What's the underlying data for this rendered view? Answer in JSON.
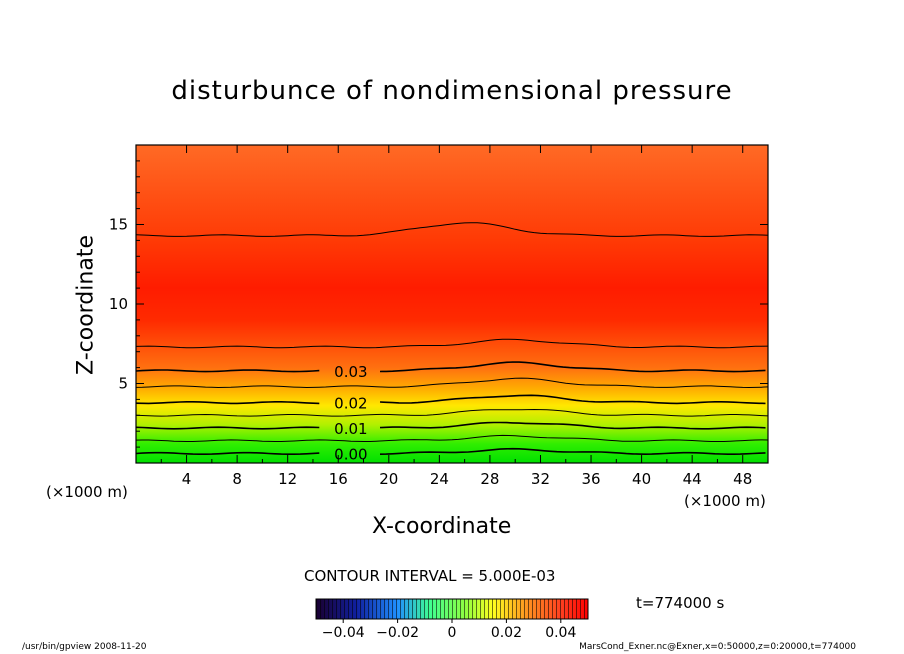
{
  "chart_data": {
    "type": "heatmap",
    "title": "disturbunce of nondimensional pressure",
    "xlabel": "X-coordinate",
    "ylabel": "Z-coordinate",
    "x_unit_left": "(×1000 m)",
    "x_unit_right": "(×1000 m)",
    "xlim": [
      0,
      50
    ],
    "ylim": [
      0,
      20
    ],
    "x_ticks": [
      4,
      8,
      12,
      16,
      20,
      24,
      28,
      32,
      36,
      40,
      44,
      48
    ],
    "y_ticks": [
      5,
      10,
      15
    ],
    "contour_interval_text": "CONTOUR INTERVAL = 5.000E-03",
    "contour_labels": [
      {
        "text": "0.00",
        "x": 17,
        "z": 0.6
      },
      {
        "text": "0.01",
        "x": 17,
        "z": 2.2
      },
      {
        "text": "0.02",
        "x": 17,
        "z": 3.8
      },
      {
        "text": "0.03",
        "x": 17,
        "z": 5.8
      }
    ],
    "contour_levels": [
      {
        "z": 0.6,
        "bump": 0.25
      },
      {
        "z": 1.4,
        "bump": 0.3
      },
      {
        "z": 2.2,
        "bump": 0.35
      },
      {
        "z": 3.0,
        "bump": 0.4
      },
      {
        "z": 3.8,
        "bump": 0.45
      },
      {
        "z": 4.8,
        "bump": 0.5
      },
      {
        "z": 5.8,
        "bump": 0.5
      },
      {
        "z": 7.3,
        "bump": 0.45
      },
      {
        "z": 14.3,
        "bump": 0.8
      }
    ],
    "colorbar": {
      "ticks": [
        -0.04,
        -0.02,
        0,
        0.02,
        0.04
      ],
      "tick_labels": [
        "−0.04",
        "−0.02",
        "0",
        "0.02",
        "0.04"
      ],
      "range": [
        -0.05,
        0.05
      ]
    },
    "time_label": "t=774000  s"
  },
  "footer": {
    "left": "/usr/bin/gpview   2008-11-20",
    "right": "MarsCond_Exner.nc@Exner,x=0:50000,z=0:20000,t=774000"
  }
}
